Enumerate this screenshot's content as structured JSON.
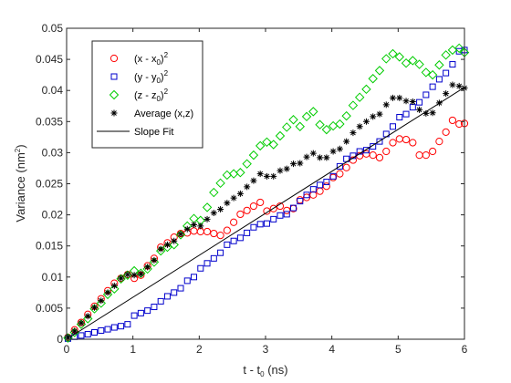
{
  "chart_data": {
    "type": "scatter",
    "xlabel": {
      "main": "t - t",
      "sub": "0",
      "tail": " (ns)"
    },
    "ylabel": {
      "main": "Variance (nm",
      "sup": "2",
      "tail": ")"
    },
    "xlim": [
      0,
      6
    ],
    "ylim": [
      0,
      0.05
    ],
    "xticks": [
      "0",
      "1",
      "2",
      "3",
      "4",
      "5",
      "6"
    ],
    "yticks": [
      "0",
      "0.005",
      "0.01",
      "0.015",
      "0.02",
      "0.025",
      "0.03",
      "0.035",
      "0.04",
      "0.045",
      "0.05"
    ],
    "grid": false,
    "legend_position": "top-left",
    "series": [
      {
        "name": "(x - x0)^2",
        "legend": {
          "pre": "(x - x",
          "sub": "0",
          "post": ")",
          "sup": "2"
        },
        "marker": "circle",
        "color": "#ff0000",
        "x": [
          0.02,
          0.12,
          0.22,
          0.32,
          0.42,
          0.52,
          0.62,
          0.72,
          0.82,
          0.92,
          1.02,
          1.12,
          1.22,
          1.32,
          1.42,
          1.52,
          1.62,
          1.72,
          1.82,
          1.92,
          2.02,
          2.12,
          2.22,
          2.32,
          2.42,
          2.52,
          2.62,
          2.72,
          2.82,
          2.92,
          3.02,
          3.12,
          3.22,
          3.32,
          3.42,
          3.52,
          3.62,
          3.72,
          3.82,
          3.92,
          4.02,
          4.12,
          4.22,
          4.32,
          4.42,
          4.52,
          4.62,
          4.72,
          4.82,
          4.92,
          5.02,
          5.12,
          5.22,
          5.32,
          5.42,
          5.52,
          5.62,
          5.72,
          5.82,
          5.92,
          6.0
        ],
        "y": [
          0.0003,
          0.0015,
          0.0027,
          0.004,
          0.0053,
          0.0065,
          0.0078,
          0.009,
          0.0098,
          0.0104,
          0.0098,
          0.0103,
          0.0118,
          0.013,
          0.0148,
          0.0155,
          0.0164,
          0.017,
          0.0171,
          0.0174,
          0.0173,
          0.0173,
          0.017,
          0.0167,
          0.0175,
          0.0188,
          0.0201,
          0.0207,
          0.0214,
          0.022,
          0.0206,
          0.021,
          0.0214,
          0.0207,
          0.021,
          0.0224,
          0.0228,
          0.0232,
          0.0238,
          0.0246,
          0.026,
          0.0266,
          0.0276,
          0.0288,
          0.0295,
          0.0298,
          0.0296,
          0.0292,
          0.0302,
          0.0316,
          0.0322,
          0.0321,
          0.0316,
          0.0296,
          0.0296,
          0.0302,
          0.0318,
          0.0333,
          0.0352,
          0.0346,
          0.0347
        ]
      },
      {
        "name": "(y - y0)^2",
        "legend": {
          "pre": "(y - y",
          "sub": "0",
          "post": ")",
          "sup": "2"
        },
        "marker": "square",
        "color": "#0000cc",
        "x": [
          0.02,
          0.12,
          0.22,
          0.32,
          0.42,
          0.52,
          0.62,
          0.72,
          0.82,
          0.92,
          1.02,
          1.12,
          1.22,
          1.32,
          1.42,
          1.52,
          1.62,
          1.72,
          1.82,
          1.92,
          2.02,
          2.12,
          2.22,
          2.32,
          2.42,
          2.52,
          2.62,
          2.72,
          2.82,
          2.92,
          3.02,
          3.12,
          3.22,
          3.32,
          3.42,
          3.52,
          3.62,
          3.72,
          3.82,
          3.92,
          4.02,
          4.12,
          4.22,
          4.32,
          4.42,
          4.52,
          4.62,
          4.72,
          4.82,
          4.92,
          5.02,
          5.12,
          5.22,
          5.32,
          5.42,
          5.52,
          5.62,
          5.72,
          5.82,
          5.92,
          6.0
        ],
        "y": [
          0.0001,
          0.0004,
          0.0006,
          0.0008,
          0.0011,
          0.0014,
          0.0016,
          0.0019,
          0.0021,
          0.0024,
          0.0038,
          0.0042,
          0.0046,
          0.0052,
          0.0061,
          0.0069,
          0.0075,
          0.0082,
          0.0094,
          0.01,
          0.0114,
          0.0122,
          0.013,
          0.0139,
          0.0152,
          0.0158,
          0.0163,
          0.0171,
          0.018,
          0.0185,
          0.0186,
          0.0193,
          0.0199,
          0.0201,
          0.0211,
          0.0222,
          0.0232,
          0.0241,
          0.0248,
          0.0253,
          0.0262,
          0.0278,
          0.029,
          0.0295,
          0.0302,
          0.0304,
          0.031,
          0.0318,
          0.033,
          0.0342,
          0.0357,
          0.0362,
          0.0373,
          0.0381,
          0.0393,
          0.0406,
          0.0418,
          0.0428,
          0.0442,
          0.0463,
          0.0465
        ]
      },
      {
        "name": "(z - z0)^2",
        "legend": {
          "pre": "(z - z",
          "sub": "0",
          "post": ")",
          "sup": "2"
        },
        "marker": "diamond",
        "color": "#00cc00",
        "x": [
          0.02,
          0.12,
          0.22,
          0.32,
          0.42,
          0.52,
          0.62,
          0.72,
          0.82,
          0.92,
          1.02,
          1.12,
          1.22,
          1.32,
          1.42,
          1.52,
          1.62,
          1.72,
          1.82,
          1.92,
          2.02,
          2.12,
          2.22,
          2.32,
          2.42,
          2.52,
          2.62,
          2.72,
          2.82,
          2.92,
          3.02,
          3.12,
          3.22,
          3.32,
          3.42,
          3.52,
          3.62,
          3.72,
          3.82,
          3.92,
          4.02,
          4.12,
          4.22,
          4.32,
          4.42,
          4.52,
          4.62,
          4.72,
          4.82,
          4.92,
          5.02,
          5.12,
          5.22,
          5.32,
          5.42,
          5.52,
          5.62,
          5.72,
          5.82,
          5.92,
          6.0
        ],
        "y": [
          0.0002,
          0.0011,
          0.0024,
          0.0033,
          0.0049,
          0.0058,
          0.0072,
          0.0081,
          0.0097,
          0.0103,
          0.011,
          0.0106,
          0.0113,
          0.0124,
          0.0142,
          0.0148,
          0.0152,
          0.0168,
          0.0182,
          0.0194,
          0.0191,
          0.0212,
          0.0236,
          0.0251,
          0.0264,
          0.0266,
          0.0268,
          0.0282,
          0.0296,
          0.0311,
          0.0317,
          0.0313,
          0.0327,
          0.0341,
          0.0353,
          0.0342,
          0.0358,
          0.0366,
          0.0345,
          0.0337,
          0.0343,
          0.0346,
          0.0359,
          0.0376,
          0.0389,
          0.0402,
          0.0419,
          0.0432,
          0.0451,
          0.0459,
          0.0454,
          0.0444,
          0.0448,
          0.0442,
          0.0429,
          0.0425,
          0.0441,
          0.0457,
          0.0465,
          0.0468,
          0.0461
        ]
      },
      {
        "name": "Average (x,z)",
        "legend": {
          "pre": "Average (x,z)",
          "sub": "",
          "post": "",
          "sup": ""
        },
        "marker": "star",
        "color": "#000000",
        "x": [
          0.02,
          0.12,
          0.22,
          0.32,
          0.42,
          0.52,
          0.62,
          0.72,
          0.82,
          0.92,
          1.02,
          1.12,
          1.22,
          1.32,
          1.42,
          1.52,
          1.62,
          1.72,
          1.82,
          1.92,
          2.02,
          2.12,
          2.22,
          2.32,
          2.42,
          2.52,
          2.62,
          2.72,
          2.82,
          2.92,
          3.02,
          3.12,
          3.22,
          3.32,
          3.42,
          3.52,
          3.62,
          3.72,
          3.82,
          3.92,
          4.02,
          4.12,
          4.22,
          4.32,
          4.42,
          4.52,
          4.62,
          4.72,
          4.82,
          4.92,
          5.02,
          5.12,
          5.22,
          5.32,
          5.42,
          5.52,
          5.62,
          5.72,
          5.82,
          5.92,
          6.0
        ],
        "y": [
          0.0003,
          0.0013,
          0.0026,
          0.0037,
          0.0051,
          0.0062,
          0.0075,
          0.0086,
          0.0098,
          0.0104,
          0.0103,
          0.0105,
          0.0116,
          0.0127,
          0.0145,
          0.0152,
          0.0158,
          0.0169,
          0.0177,
          0.0184,
          0.0182,
          0.0193,
          0.0203,
          0.0209,
          0.0219,
          0.0227,
          0.0234,
          0.0245,
          0.0255,
          0.0266,
          0.0262,
          0.0262,
          0.0271,
          0.0274,
          0.0282,
          0.0283,
          0.0293,
          0.0299,
          0.0292,
          0.0292,
          0.0302,
          0.0306,
          0.0318,
          0.0332,
          0.0342,
          0.035,
          0.0358,
          0.0362,
          0.0377,
          0.0388,
          0.0388,
          0.0383,
          0.0382,
          0.0369,
          0.0363,
          0.0364,
          0.038,
          0.0395,
          0.0409,
          0.0407,
          0.0404
        ]
      },
      {
        "name": "Slope Fit",
        "legend": {
          "pre": "Slope Fit",
          "sub": "",
          "post": "",
          "sup": ""
        },
        "marker": "line",
        "color": "#000000",
        "x": [
          0,
          6
        ],
        "y": [
          0,
          0.0405
        ]
      }
    ]
  }
}
